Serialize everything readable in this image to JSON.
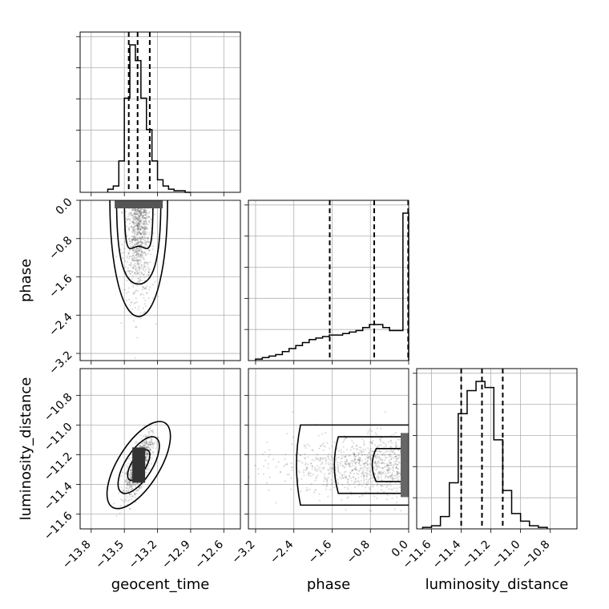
{
  "chart_data": {
    "type": "corner",
    "parameters": [
      "geocent_time",
      "phase",
      "luminosity_distance"
    ],
    "axis_labels": {
      "x": [
        "geocent_time",
        "phase",
        "luminosity_distance"
      ],
      "y": [
        "phase",
        "luminosity_distance"
      ]
    },
    "ranges": {
      "geocent_time": [
        -13.9,
        -12.45
      ],
      "phase": [
        -3.35,
        0.0
      ],
      "luminosity_distance": [
        -11.7,
        -10.62
      ]
    },
    "ticks": {
      "geocent_time": [
        "-13.8",
        "-13.5",
        "-13.2",
        "-12.9",
        "-12.6"
      ],
      "phase": [
        "-3.2",
        "-2.4",
        "-1.6",
        "-0.8",
        "0.0"
      ],
      "luminosity_distance": [
        "-11.6",
        "-11.4",
        "-11.2",
        "-11.0",
        "-10.8"
      ]
    },
    "tick_values": {
      "geocent_time": [
        -13.8,
        -13.5,
        -13.2,
        -12.9,
        -12.6
      ],
      "phase": [
        -3.2,
        -2.4,
        -1.6,
        -0.8,
        0.0
      ],
      "luminosity_distance": [
        -11.6,
        -11.4,
        -11.2,
        -11.0,
        -10.8
      ]
    },
    "quantiles": {
      "geocent_time": [
        -13.46,
        -13.38,
        -13.27
      ],
      "phase": [
        -1.65,
        -0.72,
        -0.01
      ],
      "luminosity_distance": [
        -11.4,
        -11.26,
        -11.12
      ]
    },
    "histograms": {
      "geocent_time": {
        "edges": [
          -13.65,
          -13.6,
          -13.55,
          -13.5,
          -13.45,
          -13.4,
          -13.35,
          -13.3,
          -13.25,
          -13.2,
          -13.15,
          -13.1,
          -13.05,
          -13.0,
          -12.95,
          -12.9
        ],
        "counts": [
          2,
          4,
          20,
          60,
          94,
          84,
          60,
          40,
          20,
          8,
          4,
          2,
          1,
          1,
          0
        ]
      },
      "phase": {
        "edges": [
          -3.2,
          -3.06,
          -2.92,
          -2.78,
          -2.64,
          -2.5,
          -2.36,
          -2.22,
          -2.08,
          -1.94,
          -1.8,
          -1.66,
          -1.52,
          -1.38,
          -1.24,
          -1.1,
          -0.96,
          -0.82,
          -0.68,
          -0.54,
          -0.4,
          -0.26,
          -0.12,
          0.0
        ],
        "counts": [
          1,
          2,
          3,
          4,
          6,
          8,
          10,
          12,
          14,
          15,
          16,
          17,
          17,
          18,
          19,
          20,
          22,
          24,
          24,
          22,
          20,
          20,
          98
        ]
      },
      "luminosity_distance": {
        "edges": [
          -11.66,
          -11.6,
          -11.54,
          -11.48,
          -11.42,
          -11.36,
          -11.3,
          -11.24,
          -11.18,
          -11.12,
          -11.06,
          -11.0,
          -10.94,
          -10.88,
          -10.82
        ],
        "counts": [
          1,
          2,
          8,
          30,
          75,
          90,
          96,
          92,
          58,
          25,
          10,
          5,
          2,
          1
        ]
      }
    },
    "joint_2d": [
      {
        "x": "geocent_time",
        "y": "phase",
        "center": [
          -13.37,
          -0.3
        ],
        "spread": [
          0.05,
          0.8
        ],
        "corr": 0.0
      },
      {
        "x": "geocent_time",
        "y": "luminosity_distance",
        "center": [
          -13.37,
          -11.27
        ],
        "spread": [
          0.06,
          0.1
        ],
        "corr": 0.72
      },
      {
        "x": "phase",
        "y": "luminosity_distance",
        "center": [
          -0.9,
          -11.27
        ],
        "spread": [
          0.9,
          0.1
        ],
        "corr": 0.0
      }
    ],
    "grid": true
  }
}
